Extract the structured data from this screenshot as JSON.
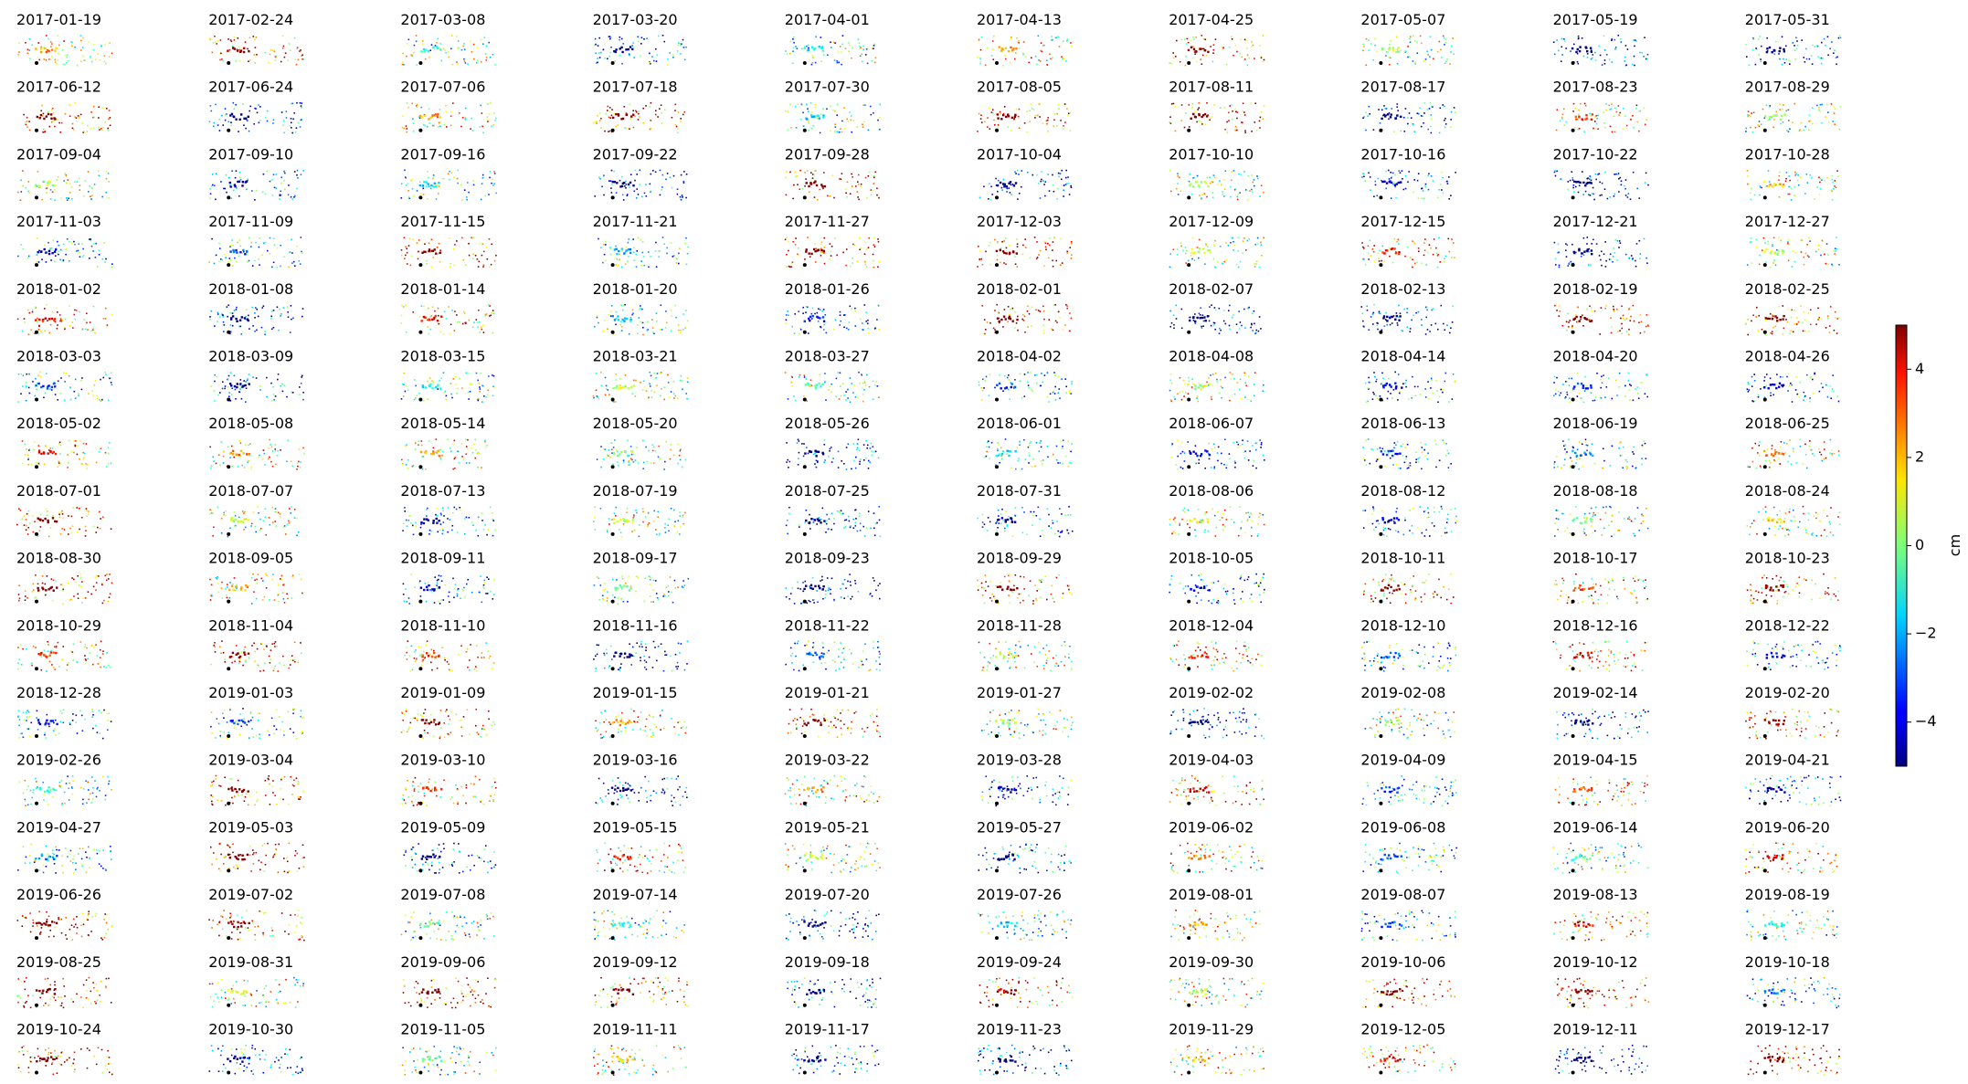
{
  "chart_data": {
    "type": "small-multiples",
    "panel_titles": [
      "2017-01-19",
      "2017-02-24",
      "2017-03-08",
      "2017-03-20",
      "2017-04-01",
      "2017-04-13",
      "2017-04-25",
      "2017-05-07",
      "2017-05-19",
      "2017-05-31",
      "2017-06-12",
      "2017-06-24",
      "2017-07-06",
      "2017-07-18",
      "2017-07-30",
      "2017-08-05",
      "2017-08-11",
      "2017-08-17",
      "2017-08-23",
      "2017-08-29",
      "2017-09-04",
      "2017-09-10",
      "2017-09-16",
      "2017-09-22",
      "2017-09-28",
      "2017-10-04",
      "2017-10-10",
      "2017-10-16",
      "2017-10-22",
      "2017-10-28",
      "2017-11-03",
      "2017-11-09",
      "2017-11-15",
      "2017-11-21",
      "2017-11-27",
      "2017-12-03",
      "2017-12-09",
      "2017-12-15",
      "2017-12-21",
      "2017-12-27",
      "2018-01-02",
      "2018-01-08",
      "2018-01-14",
      "2018-01-20",
      "2018-01-26",
      "2018-02-01",
      "2018-02-07",
      "2018-02-13",
      "2018-02-19",
      "2018-02-25",
      "2018-03-03",
      "2018-03-09",
      "2018-03-15",
      "2018-03-21",
      "2018-03-27",
      "2018-04-02",
      "2018-04-08",
      "2018-04-14",
      "2018-04-20",
      "2018-04-26",
      "2018-05-02",
      "2018-05-08",
      "2018-05-14",
      "2018-05-20",
      "2018-05-26",
      "2018-06-01",
      "2018-06-07",
      "2018-06-13",
      "2018-06-19",
      "2018-06-25",
      "2018-07-01",
      "2018-07-07",
      "2018-07-13",
      "2018-07-19",
      "2018-07-25",
      "2018-07-31",
      "2018-08-06",
      "2018-08-12",
      "2018-08-18",
      "2018-08-24",
      "2018-08-30",
      "2018-09-05",
      "2018-09-11",
      "2018-09-17",
      "2018-09-23",
      "2018-09-29",
      "2018-10-05",
      "2018-10-11",
      "2018-10-17",
      "2018-10-23",
      "2018-10-29",
      "2018-11-04",
      "2018-11-10",
      "2018-11-16",
      "2018-11-22",
      "2018-11-28",
      "2018-12-04",
      "2018-12-10",
      "2018-12-16",
      "2018-12-22",
      "2018-12-28",
      "2019-01-03",
      "2019-01-09",
      "2019-01-15",
      "2019-01-21",
      "2019-01-27",
      "2019-02-02",
      "2019-02-08",
      "2019-02-14",
      "2019-02-20",
      "2019-02-26",
      "2019-03-04",
      "2019-03-10",
      "2019-03-16",
      "2019-03-22",
      "2019-03-28",
      "2019-04-03",
      "2019-04-09",
      "2019-04-15",
      "2019-04-21",
      "2019-04-27",
      "2019-05-03",
      "2019-05-09",
      "2019-05-15",
      "2019-05-21",
      "2019-05-27",
      "2019-06-02",
      "2019-06-08",
      "2019-06-14",
      "2019-06-20",
      "2019-06-26",
      "2019-07-02",
      "2019-07-08",
      "2019-07-14",
      "2019-07-20",
      "2019-07-26",
      "2019-08-01",
      "2019-08-07",
      "2019-08-13",
      "2019-08-19",
      "2019-08-25",
      "2019-08-31",
      "2019-09-06",
      "2019-09-12",
      "2019-09-18",
      "2019-09-24",
      "2019-09-30",
      "2019-10-06",
      "2019-10-12",
      "2019-10-18",
      "2019-10-24",
      "2019-10-30",
      "2019-11-05",
      "2019-11-11",
      "2019-11-17",
      "2019-11-23",
      "2019-11-29",
      "2019-12-05",
      "2019-12-11",
      "2019-12-17"
    ],
    "colorbar": {
      "label": "cm",
      "colormap": "jet",
      "ylim": [
        -5,
        5
      ],
      "yticks": [
        {
          "value": -4,
          "label": "−4"
        },
        {
          "value": -2,
          "label": "−2"
        },
        0,
        2,
        4
      ]
    }
  }
}
